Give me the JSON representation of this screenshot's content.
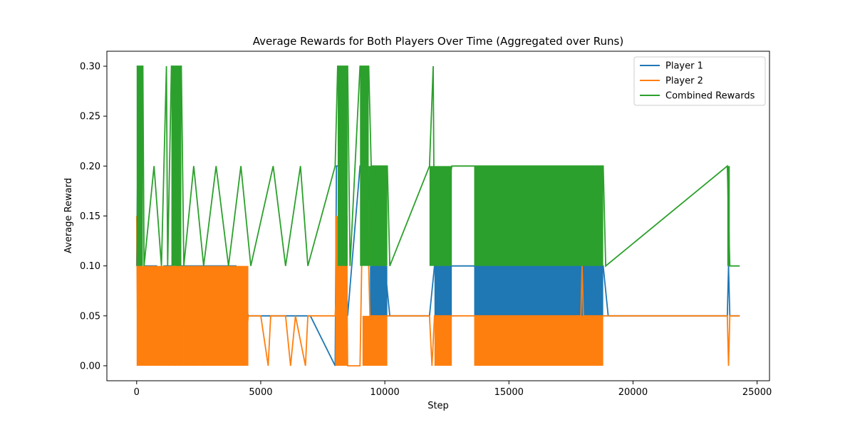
{
  "chart_data": {
    "type": "line",
    "title": "Average Rewards for Both Players Over Time (Aggregated over Runs)",
    "xlabel": "Step",
    "ylabel": "Average Reward",
    "xlim": [
      -1200,
      25500
    ],
    "ylim": [
      -0.015,
      0.315
    ],
    "xticks": [
      0,
      5000,
      10000,
      15000,
      20000,
      25000
    ],
    "xtick_labels": [
      "0",
      "5000",
      "10000",
      "15000",
      "20000",
      "25000"
    ],
    "yticks": [
      0.0,
      0.05,
      0.1,
      0.15,
      0.2,
      0.25,
      0.3
    ],
    "ytick_labels": [
      "0.00",
      "0.05",
      "0.10",
      "0.15",
      "0.20",
      "0.25",
      "0.30"
    ],
    "grid": false,
    "legend_position": "top-right",
    "series": [
      {
        "name": "Player 1",
        "color": "#1f77b4",
        "points": [
          [
            0,
            0.1
          ],
          [
            40,
            0.2
          ],
          [
            80,
            0.15
          ],
          [
            150,
            0.1
          ],
          [
            260,
            0.05
          ],
          [
            300,
            0.1
          ],
          [
            400,
            0.1
          ],
          [
            600,
            0.1
          ],
          [
            800,
            0.1
          ],
          [
            1000,
            0.05
          ],
          [
            1050,
            0.0
          ],
          [
            1100,
            0.1
          ],
          [
            1400,
            0.1
          ],
          [
            1550,
            0.0
          ],
          [
            1600,
            0.1
          ],
          [
            2000,
            0.1
          ],
          [
            2400,
            0.1
          ],
          [
            3000,
            0.1
          ],
          [
            3500,
            0.1
          ],
          [
            4000,
            0.1
          ],
          [
            4500,
            0.05
          ],
          [
            5000,
            0.05
          ],
          [
            5400,
            0.05
          ],
          [
            6000,
            0.05
          ],
          [
            6400,
            0.05
          ],
          [
            6800,
            0.05
          ],
          [
            7000,
            0.05
          ],
          [
            8000,
            0.0
          ],
          [
            8050,
            0.2
          ],
          [
            8300,
            0.2
          ],
          [
            8500,
            0.05
          ],
          [
            9000,
            0.2
          ],
          [
            9300,
            0.2
          ],
          [
            9500,
            0.1
          ],
          [
            10000,
            0.1
          ],
          [
            10200,
            0.05
          ],
          [
            11800,
            0.05
          ],
          [
            12000,
            0.1
          ],
          [
            12700,
            0.1
          ],
          [
            13600,
            0.1
          ],
          [
            15000,
            0.1
          ],
          [
            17000,
            0.1
          ],
          [
            18800,
            0.1
          ],
          [
            19000,
            0.05
          ],
          [
            23800,
            0.05
          ],
          [
            23850,
            0.1
          ],
          [
            23900,
            0.05
          ],
          [
            24300,
            0.05
          ]
        ],
        "fill_bands": [
          [
            13600,
            18800,
            0.05,
            0.1
          ],
          [
            9400,
            10100,
            0.05,
            0.1
          ],
          [
            12000,
            12700,
            0.05,
            0.1
          ]
        ]
      },
      {
        "name": "Player 2",
        "color": "#ff7f0e",
        "points": [
          [
            0,
            0.15
          ],
          [
            50,
            0.0
          ],
          [
            100,
            0.15
          ],
          [
            150,
            0.05
          ],
          [
            300,
            0.1
          ],
          [
            500,
            0.0
          ],
          [
            700,
            0.1
          ],
          [
            900,
            0.0
          ],
          [
            1100,
            0.1
          ],
          [
            1300,
            0.0
          ],
          [
            1500,
            0.1
          ],
          [
            1700,
            0.0
          ],
          [
            1900,
            0.05
          ],
          [
            2100,
            0.1
          ],
          [
            2300,
            0.0
          ],
          [
            2500,
            0.1
          ],
          [
            2700,
            0.0
          ],
          [
            2900,
            0.1
          ],
          [
            3100,
            0.0
          ],
          [
            3300,
            0.1
          ],
          [
            3500,
            0.0
          ],
          [
            3700,
            0.1
          ],
          [
            3900,
            0.0
          ],
          [
            4100,
            0.1
          ],
          [
            4300,
            0.0
          ],
          [
            4500,
            0.05
          ],
          [
            5000,
            0.05
          ],
          [
            5300,
            0.0
          ],
          [
            5400,
            0.05
          ],
          [
            6000,
            0.05
          ],
          [
            6200,
            0.0
          ],
          [
            6400,
            0.05
          ],
          [
            6800,
            0.0
          ],
          [
            6900,
            0.05
          ],
          [
            8000,
            0.05
          ],
          [
            8100,
            0.1
          ],
          [
            8200,
            0.0
          ],
          [
            8300,
            0.15
          ],
          [
            8450,
            0.15
          ],
          [
            8500,
            0.0
          ],
          [
            9000,
            0.0
          ],
          [
            9100,
            0.15
          ],
          [
            9300,
            0.15
          ],
          [
            9400,
            0.05
          ],
          [
            10200,
            0.05
          ],
          [
            11800,
            0.05
          ],
          [
            11900,
            0.0
          ],
          [
            12000,
            0.05
          ],
          [
            12700,
            0.05
          ],
          [
            13600,
            0.05
          ],
          [
            17900,
            0.05
          ],
          [
            17950,
            0.1
          ],
          [
            18000,
            0.05
          ],
          [
            18800,
            0.05
          ],
          [
            23800,
            0.05
          ],
          [
            23850,
            0.0
          ],
          [
            23900,
            0.05
          ],
          [
            24300,
            0.05
          ]
        ],
        "fill_bands": [
          [
            0,
            1900,
            0.0,
            0.1
          ],
          [
            1900,
            4500,
            0.0,
            0.1
          ],
          [
            8000,
            8500,
            0.0,
            0.15
          ],
          [
            9100,
            10100,
            0.0,
            0.05
          ],
          [
            12000,
            12700,
            0.0,
            0.05
          ],
          [
            13600,
            18800,
            0.0,
            0.05
          ]
        ]
      },
      {
        "name": "Combined Rewards",
        "color": "#2ca02c",
        "points": [
          [
            0,
            0.3
          ],
          [
            250,
            0.3
          ],
          [
            300,
            0.1
          ],
          [
            700,
            0.2
          ],
          [
            1000,
            0.1
          ],
          [
            1200,
            0.3
          ],
          [
            1250,
            0.1
          ],
          [
            1400,
            0.3
          ],
          [
            1800,
            0.3
          ],
          [
            1900,
            0.1
          ],
          [
            2300,
            0.2
          ],
          [
            2700,
            0.1
          ],
          [
            3200,
            0.2
          ],
          [
            3700,
            0.1
          ],
          [
            4200,
            0.2
          ],
          [
            4600,
            0.1
          ],
          [
            5500,
            0.2
          ],
          [
            6000,
            0.1
          ],
          [
            6600,
            0.2
          ],
          [
            6900,
            0.1
          ],
          [
            8000,
            0.2
          ],
          [
            8100,
            0.3
          ],
          [
            8500,
            0.3
          ],
          [
            8600,
            0.1
          ],
          [
            9000,
            0.3
          ],
          [
            9350,
            0.3
          ],
          [
            9450,
            0.2
          ],
          [
            10100,
            0.2
          ],
          [
            10200,
            0.1
          ],
          [
            11800,
            0.2
          ],
          [
            11950,
            0.3
          ],
          [
            12000,
            0.1
          ],
          [
            12700,
            0.2
          ],
          [
            13600,
            0.2
          ],
          [
            15000,
            0.2
          ],
          [
            18800,
            0.2
          ],
          [
            18900,
            0.1
          ],
          [
            23800,
            0.2
          ],
          [
            23900,
            0.1
          ],
          [
            24300,
            0.1
          ]
        ],
        "fill_bands": [
          [
            0,
            250,
            0.1,
            0.3
          ],
          [
            1400,
            1800,
            0.1,
            0.3
          ],
          [
            8100,
            8500,
            0.1,
            0.3
          ],
          [
            9000,
            9350,
            0.1,
            0.3
          ],
          [
            9350,
            10100,
            0.1,
            0.2
          ],
          [
            11800,
            12700,
            0.1,
            0.2
          ],
          [
            13600,
            18800,
            0.1,
            0.2
          ],
          [
            23800,
            23900,
            0.1,
            0.2
          ]
        ]
      }
    ]
  }
}
